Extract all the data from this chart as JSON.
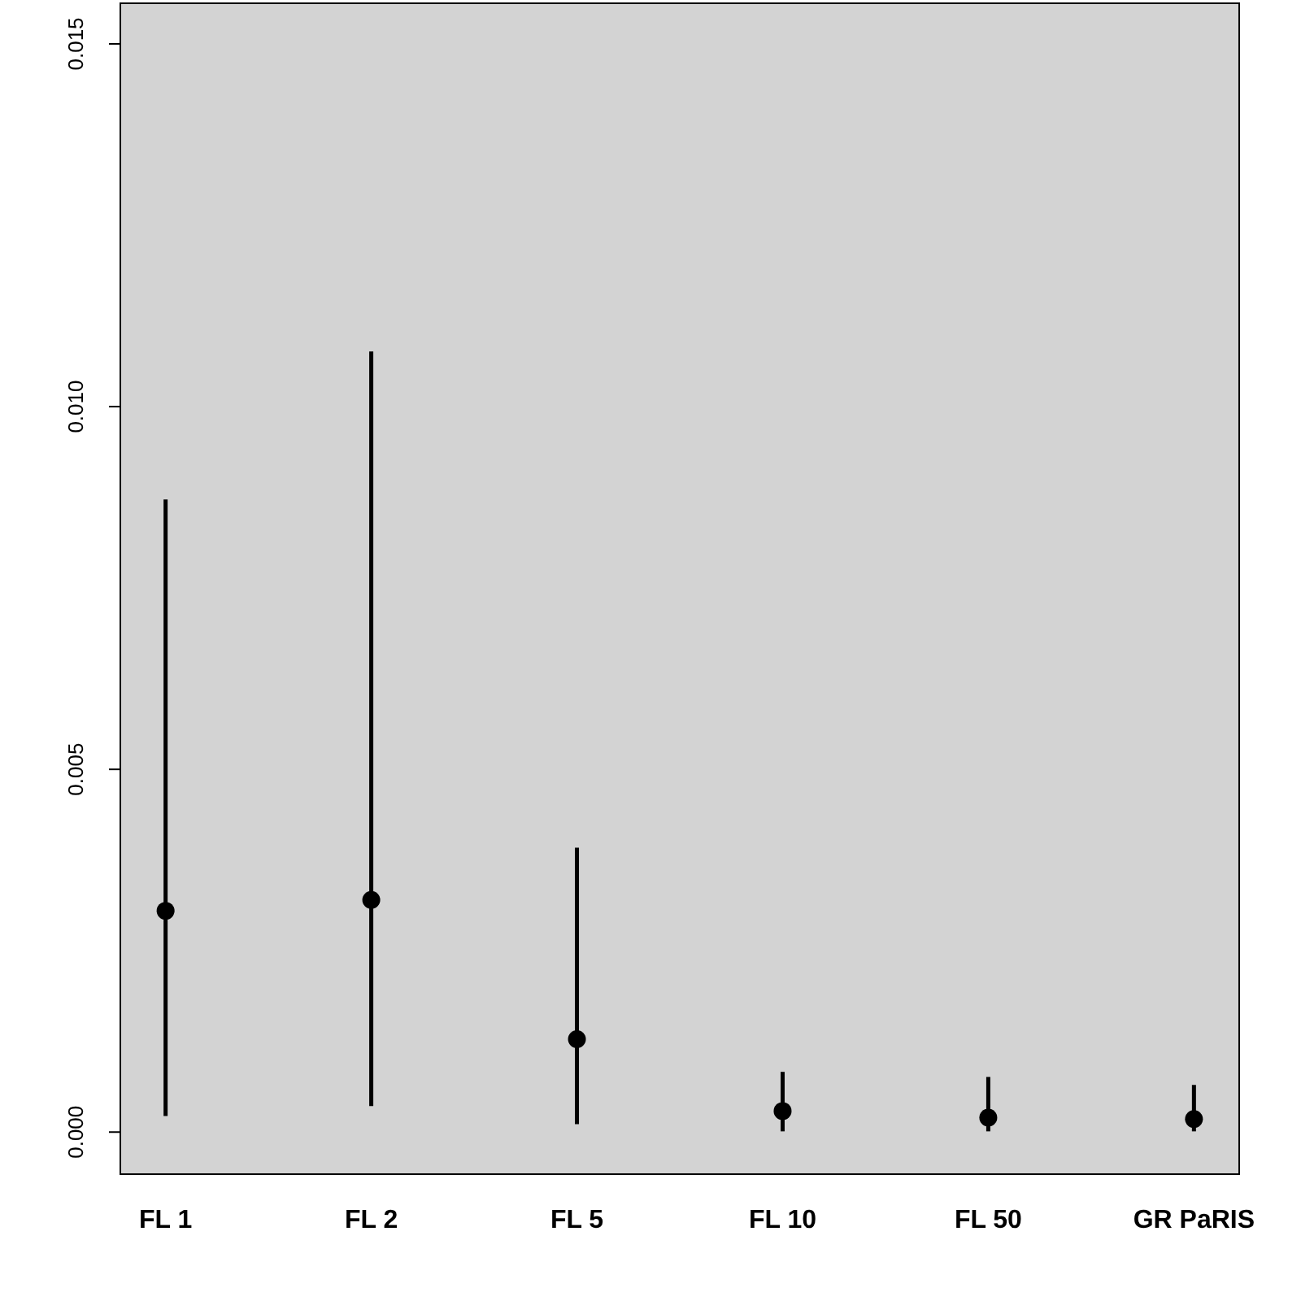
{
  "chart_data": {
    "type": "scatter",
    "categories": [
      "FL 1",
      "FL 2",
      "FL 5",
      "FL 10",
      "FL 50",
      "GR PaRIS"
    ],
    "values": [
      0.00305,
      0.0032,
      0.00128,
      0.00029,
      0.0002,
      0.00018
    ],
    "errors": [
      [
        0.00022,
        0.00872
      ],
      [
        0.00036,
        0.01076
      ],
      [
        0.00011,
        0.00392
      ],
      [
        1e-05,
        0.00083
      ],
      [
        1e-05,
        0.00076
      ],
      [
        1e-05,
        0.00065
      ]
    ],
    "color": "#000000",
    "marker": "circle",
    "ylim": [
      -0.00058,
      0.01556
    ],
    "yticks": [
      {
        "value": 0,
        "label": "0.000"
      },
      {
        "value": 0.005,
        "label": "0.005"
      },
      {
        "value": 0.01,
        "label": "0.010"
      },
      {
        "value": 0.015,
        "label": "0.015"
      }
    ],
    "grid": false
  }
}
